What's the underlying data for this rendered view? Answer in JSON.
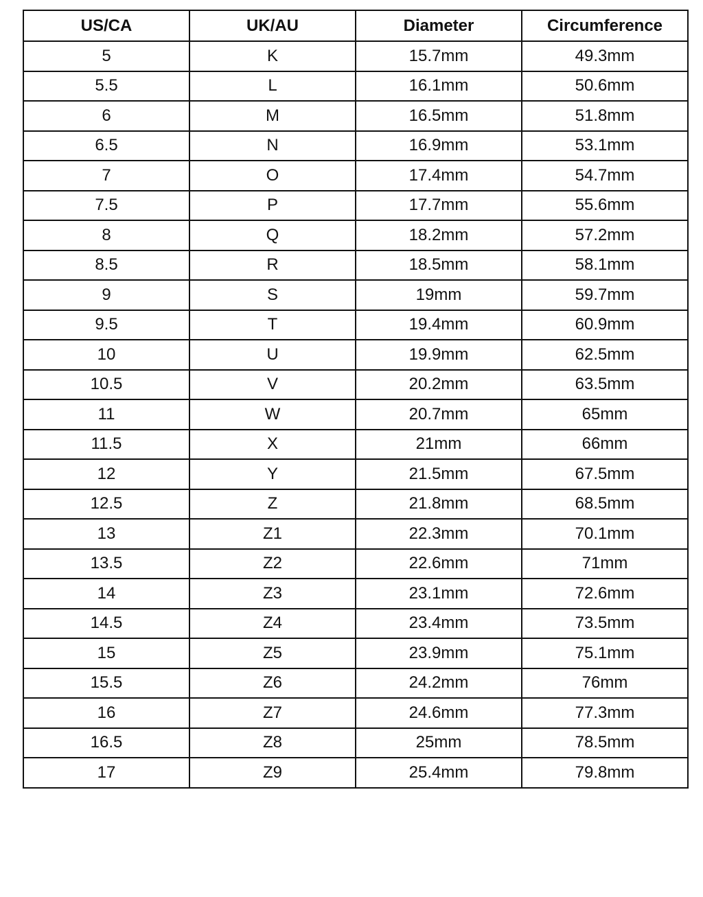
{
  "table": {
    "headers": [
      "US/CA",
      "UK/AU",
      "Diameter",
      "Circumference"
    ],
    "rows": [
      [
        "5",
        "K",
        "15.7mm",
        "49.3mm"
      ],
      [
        "5.5",
        "L",
        "16.1mm",
        "50.6mm"
      ],
      [
        "6",
        "M",
        "16.5mm",
        "51.8mm"
      ],
      [
        "6.5",
        "N",
        "16.9mm",
        "53.1mm"
      ],
      [
        "7",
        "O",
        "17.4mm",
        "54.7mm"
      ],
      [
        "7.5",
        "P",
        "17.7mm",
        "55.6mm"
      ],
      [
        "8",
        "Q",
        "18.2mm",
        "57.2mm"
      ],
      [
        "8.5",
        "R",
        "18.5mm",
        "58.1mm"
      ],
      [
        "9",
        "S",
        "19mm",
        "59.7mm"
      ],
      [
        "9.5",
        "T",
        "19.4mm",
        "60.9mm"
      ],
      [
        "10",
        "U",
        "19.9mm",
        "62.5mm"
      ],
      [
        "10.5",
        "V",
        "20.2mm",
        "63.5mm"
      ],
      [
        "11",
        "W",
        "20.7mm",
        "65mm"
      ],
      [
        "11.5",
        "X",
        "21mm",
        "66mm"
      ],
      [
        "12",
        "Y",
        "21.5mm",
        "67.5mm"
      ],
      [
        "12.5",
        "Z",
        "21.8mm",
        "68.5mm"
      ],
      [
        "13",
        "Z1",
        "22.3mm",
        "70.1mm"
      ],
      [
        "13.5",
        "Z2",
        "22.6mm",
        "71mm"
      ],
      [
        "14",
        "Z3",
        "23.1mm",
        "72.6mm"
      ],
      [
        "14.5",
        "Z4",
        "23.4mm",
        "73.5mm"
      ],
      [
        "15",
        "Z5",
        "23.9mm",
        "75.1mm"
      ],
      [
        "15.5",
        "Z6",
        "24.2mm",
        "76mm"
      ],
      [
        "16",
        "Z7",
        "24.6mm",
        "77.3mm"
      ],
      [
        "16.5",
        "Z8",
        "25mm",
        "78.5mm"
      ],
      [
        "17",
        "Z9",
        "25.4mm",
        "79.8mm"
      ]
    ]
  }
}
